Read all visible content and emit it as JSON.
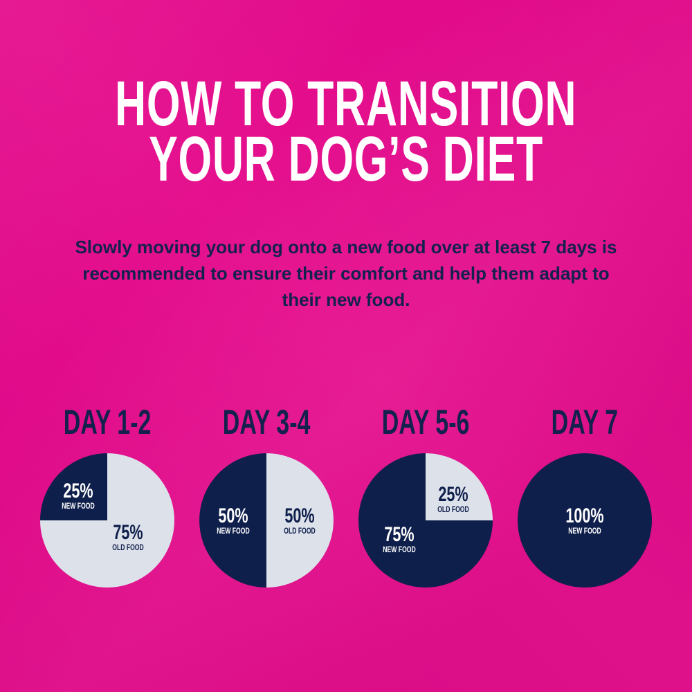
{
  "title_lines": [
    "HOW TO TRANSITION",
    "YOUR DOG’S DIET"
  ],
  "subtitle": "Slowly moving your dog onto a new food over at least 7 days is recommended to ensure their comfort and help them adapt to their new food.",
  "colors": {
    "background": "#e4078a",
    "new_food": "#0f1f4b",
    "old_food": "#dde1ea",
    "title": "#ffffff",
    "text": "#14214d"
  },
  "chart_data": [
    {
      "type": "pie",
      "title": "DAY 1-2",
      "slices": [
        {
          "name": "NEW FOOD",
          "value": 25,
          "label": "25%"
        },
        {
          "name": "OLD FOOD",
          "value": 75,
          "label": "75%"
        }
      ]
    },
    {
      "type": "pie",
      "title": "DAY 3-4",
      "slices": [
        {
          "name": "NEW FOOD",
          "value": 50,
          "label": "50%"
        },
        {
          "name": "OLD FOOD",
          "value": 50,
          "label": "50%"
        }
      ]
    },
    {
      "type": "pie",
      "title": "DAY 5-6",
      "slices": [
        {
          "name": "NEW FOOD",
          "value": 75,
          "label": "75%"
        },
        {
          "name": "OLD FOOD",
          "value": 25,
          "label": "25%"
        }
      ]
    },
    {
      "type": "pie",
      "title": "DAY 7",
      "slices": [
        {
          "name": "NEW FOOD",
          "value": 100,
          "label": "100%"
        }
      ]
    }
  ]
}
